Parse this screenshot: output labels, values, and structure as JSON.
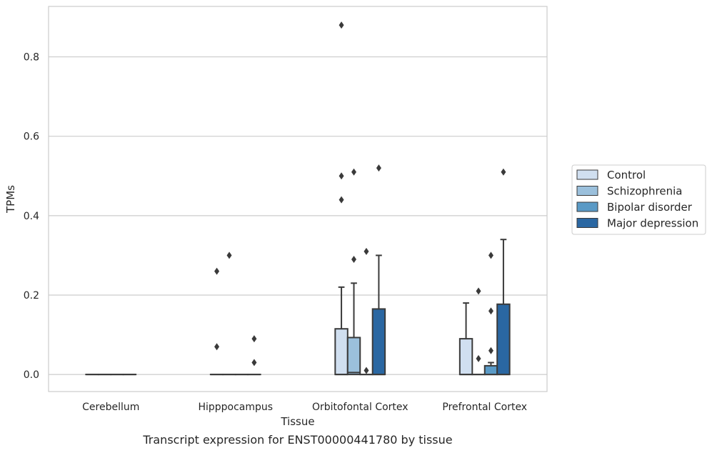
{
  "chart_data": {
    "type": "box",
    "title": "",
    "caption": "Transcript expression for ENST00000441780 by tissue",
    "xlabel": "Tissue",
    "ylabel": "TPMs",
    "ylim": [
      -0.043,
      0.927
    ],
    "yticks": [
      0.0,
      0.2,
      0.4,
      0.6,
      0.8
    ],
    "ytick_labels": [
      "0.0",
      "0.2",
      "0.4",
      "0.6",
      "0.8"
    ],
    "grid": "horizontal",
    "legend_position": "right",
    "categories": [
      "Cerebellum",
      "Hipppocampus",
      "Orbitofontal Cortex",
      "Prefrontal Cortex"
    ],
    "series": [
      {
        "name": "Control",
        "color": "#d0dff0",
        "boxes": [
          {
            "q1": 0,
            "median": 0,
            "q3": 0,
            "whislo": 0,
            "whishi": 0,
            "fliers": []
          },
          {
            "q1": 0,
            "median": 0,
            "q3": 0,
            "whislo": 0,
            "whishi": 0,
            "fliers": [
              0.26,
              0.07
            ]
          },
          {
            "q1": 0,
            "median": 0,
            "q3": 0.115,
            "whislo": 0,
            "whishi": 0.22,
            "fliers": [
              0.88,
              0.5,
              0.44
            ]
          },
          {
            "q1": 0,
            "median": 0,
            "q3": 0.09,
            "whislo": 0,
            "whishi": 0.18,
            "fliers": []
          }
        ]
      },
      {
        "name": "Schizophrenia",
        "color": "#9bc0dc",
        "boxes": [
          {
            "q1": 0,
            "median": 0,
            "q3": 0,
            "whislo": 0,
            "whishi": 0,
            "fliers": []
          },
          {
            "q1": 0,
            "median": 0,
            "q3": 0,
            "whislo": 0,
            "whishi": 0,
            "fliers": [
              0.3
            ]
          },
          {
            "q1": 0,
            "median": 0.005,
            "q3": 0.093,
            "whislo": 0,
            "whishi": 0.23,
            "fliers": [
              0.51,
              0.29
            ]
          },
          {
            "q1": 0,
            "median": 0,
            "q3": 0,
            "whislo": 0,
            "whishi": 0,
            "fliers": [
              0.21,
              0.04
            ]
          }
        ]
      },
      {
        "name": "Bipolar disorder",
        "color": "#5a9ac6",
        "boxes": [
          {
            "q1": 0,
            "median": 0,
            "q3": 0,
            "whislo": 0,
            "whishi": 0,
            "fliers": []
          },
          {
            "q1": 0,
            "median": 0,
            "q3": 0,
            "whislo": 0,
            "whishi": 0,
            "fliers": []
          },
          {
            "q1": 0,
            "median": 0,
            "q3": 0,
            "whislo": 0,
            "whishi": 0,
            "fliers": [
              0.31,
              0.01
            ]
          },
          {
            "q1": 0,
            "median": 0,
            "q3": 0.022,
            "whislo": 0,
            "whishi": 0.03,
            "fliers": [
              0.3,
              0.16,
              0.06
            ]
          }
        ]
      },
      {
        "name": "Major depression",
        "color": "#2a67a2",
        "boxes": [
          {
            "q1": 0,
            "median": 0,
            "q3": 0,
            "whislo": 0,
            "whishi": 0,
            "fliers": []
          },
          {
            "q1": 0,
            "median": 0,
            "q3": 0,
            "whislo": 0,
            "whishi": 0,
            "fliers": [
              0.09,
              0.03
            ]
          },
          {
            "q1": 0,
            "median": 0,
            "q3": 0.165,
            "whislo": 0,
            "whishi": 0.3,
            "fliers": [
              0.52
            ]
          },
          {
            "q1": 0,
            "median": 0,
            "q3": 0.177,
            "whislo": 0,
            "whishi": 0.34,
            "fliers": [
              0.51
            ]
          }
        ]
      }
    ]
  }
}
